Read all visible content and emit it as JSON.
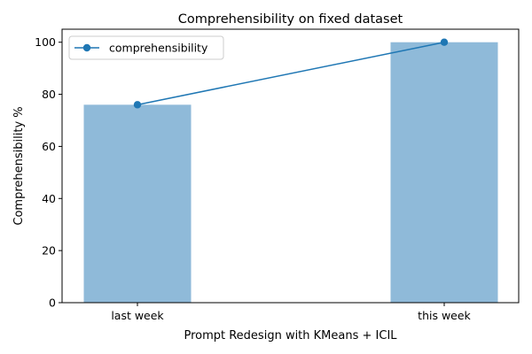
{
  "chart_data": {
    "type": "bar",
    "title": "Comprehensibility on fixed dataset",
    "xlabel": "Prompt Redesign with KMeans + ICIL",
    "ylabel": "Comprehensibility %",
    "categories": [
      "last week",
      "this week"
    ],
    "values": [
      76,
      100
    ],
    "ylim": [
      0,
      105
    ],
    "yticks": [
      0,
      20,
      40,
      60,
      80,
      100
    ],
    "grid": false,
    "legend_position": "upper-left",
    "line_series": {
      "name": "comprehensibility",
      "values": [
        76,
        100
      ],
      "marker": "circle"
    },
    "colors": {
      "bar": "#8fbad9",
      "line": "#1f77b4"
    }
  }
}
